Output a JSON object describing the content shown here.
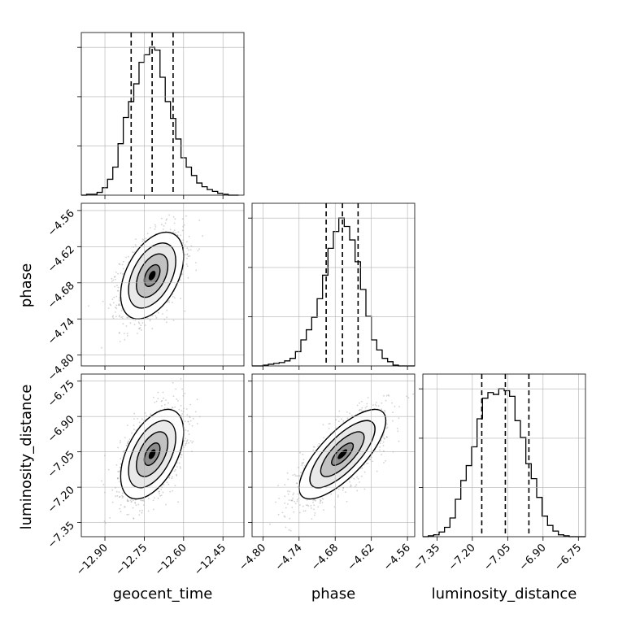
{
  "chart_data": {
    "type": "corner",
    "parameters": [
      "geocent_time",
      "phase",
      "luminosity_distance"
    ],
    "axis_labels": {
      "x": [
        "geocent_time",
        "phase",
        "luminosity_distance"
      ],
      "y_left": [
        "",
        "phase",
        "luminosity_distance"
      ]
    },
    "ranges": {
      "geocent_time": [
        -12.99,
        -12.37
      ],
      "phase": [
        -4.818,
        -4.548
      ],
      "luminosity_distance": [
        -7.41,
        -6.72
      ]
    },
    "tick_labels": {
      "geocent_time": [
        "−12.90",
        "−12.75",
        "−12.60",
        "−12.45"
      ],
      "phase": [
        "−4.80",
        "−4.74",
        "−4.68",
        "−4.62",
        "−4.56"
      ],
      "luminosity_distance": [
        "−7.35",
        "−7.20",
        "−7.05",
        "−6.90",
        "−6.75"
      ]
    },
    "tick_values": {
      "geocent_time": [
        -12.9,
        -12.75,
        -12.6,
        -12.45
      ],
      "phase": [
        -4.8,
        -4.74,
        -4.68,
        -4.62,
        -4.56
      ],
      "luminosity_distance": [
        -7.35,
        -7.2,
        -7.05,
        -6.9,
        -6.75
      ]
    },
    "quantiles": {
      "geocent_time": [
        -12.8,
        -12.72,
        -12.64
      ],
      "phase": [
        -4.695,
        -4.668,
        -4.642
      ],
      "luminosity_distance": [
        -7.16,
        -7.06,
        -6.96
      ]
    },
    "histograms": {
      "geocent_time": {
        "edges": [
          -12.99,
          -12.97,
          -12.95,
          -12.93,
          -12.91,
          -12.89,
          -12.87,
          -12.85,
          -12.83,
          -12.81,
          -12.79,
          -12.77,
          -12.75,
          -12.73,
          -12.71,
          -12.69,
          -12.67,
          -12.65,
          -12.63,
          -12.61,
          -12.59,
          -12.57,
          -12.55,
          -12.53,
          -12.51,
          -12.49,
          -12.47,
          -12.45,
          -12.43,
          -12.41,
          -12.39
        ],
        "counts": [
          0,
          1,
          1,
          3,
          8,
          17,
          30,
          55,
          83,
          100,
          119,
          142,
          150,
          158,
          155,
          126,
          100,
          82,
          60,
          40,
          30,
          21,
          13,
          9,
          6,
          4,
          2,
          1,
          0,
          0
        ]
      },
      "phase": {
        "edges": [
          -4.818,
          -4.809,
          -4.8,
          -4.791,
          -4.782,
          -4.773,
          -4.764,
          -4.755,
          -4.746,
          -4.737,
          -4.728,
          -4.719,
          -4.71,
          -4.701,
          -4.692,
          -4.683,
          -4.674,
          -4.665,
          -4.656,
          -4.647,
          -4.638,
          -4.629,
          -4.62,
          -4.611,
          -4.602,
          -4.593,
          -4.584,
          -4.575,
          -4.566,
          -4.557,
          -4.548
        ],
        "counts": [
          0,
          0,
          1,
          2,
          3,
          4,
          6,
          9,
          17,
          31,
          43,
          58,
          80,
          108,
          140,
          160,
          176,
          166,
          150,
          124,
          91,
          59,
          31,
          19,
          9,
          5,
          1,
          0,
          0,
          0
        ]
      },
      "luminosity_distance": {
        "edges": [
          -7.41,
          -7.387,
          -7.364,
          -7.341,
          -7.318,
          -7.295,
          -7.272,
          -7.249,
          -7.226,
          -7.203,
          -7.18,
          -7.157,
          -7.134,
          -7.111,
          -7.088,
          -7.065,
          -7.042,
          -7.019,
          -6.996,
          -6.973,
          -6.95,
          -6.927,
          -6.904,
          -6.881,
          -6.858,
          -6.835,
          -6.812,
          -6.789,
          -6.766,
          -6.743,
          -6.72
        ],
        "counts": [
          0,
          1,
          2,
          5,
          10,
          20,
          40,
          60,
          76,
          96,
          126,
          148,
          154,
          152,
          158,
          156,
          150,
          124,
          106,
          78,
          62,
          42,
          22,
          12,
          6,
          2,
          1,
          0,
          0,
          0
        ]
      }
    },
    "pairs": [
      {
        "x": "geocent_time",
        "y": "phase",
        "mean": [
          -12.72,
          -4.668
        ],
        "std": [
          0.06,
          0.036
        ],
        "rho": 0.45,
        "n_points": 1500
      },
      {
        "x": "geocent_time",
        "y": "luminosity_distance",
        "mean": [
          -12.72,
          -7.06
        ],
        "std": [
          0.06,
          0.095
        ],
        "rho": 0.5,
        "n_points": 1500
      },
      {
        "x": "phase",
        "y": "luminosity_distance",
        "mean": [
          -4.668,
          -7.06
        ],
        "std": [
          0.036,
          0.095
        ],
        "rho": 0.75,
        "n_points": 1500
      }
    ],
    "contour_levels_sigma": [
      0.5,
      1.0,
      1.5,
      2.0
    ],
    "grid": true
  }
}
